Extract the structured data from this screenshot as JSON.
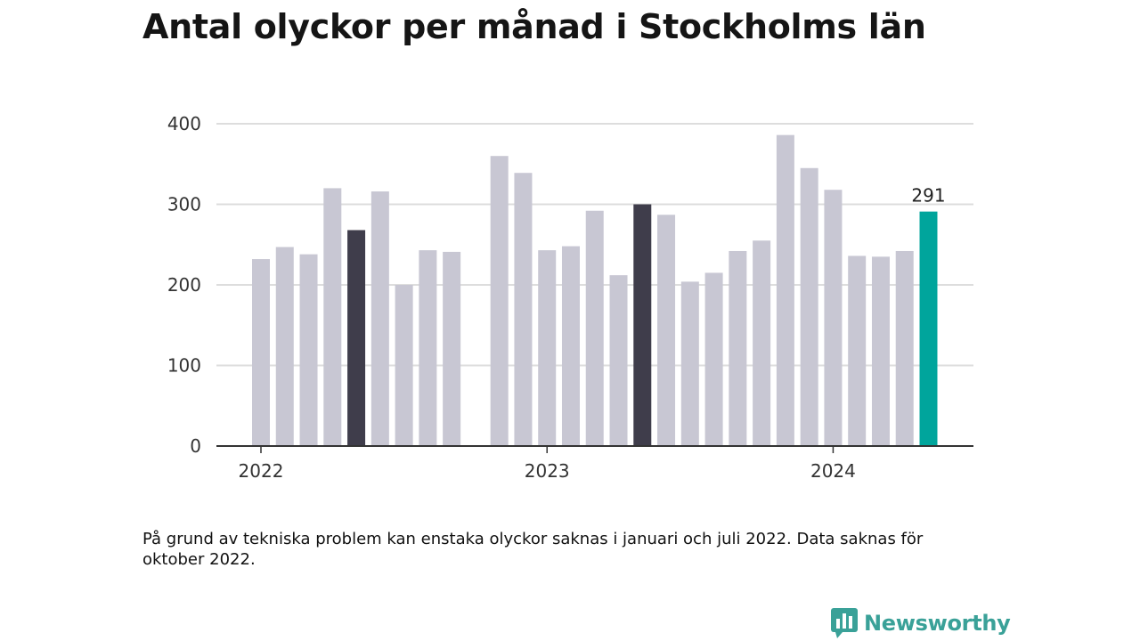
{
  "header": {
    "title": "Antal olyckor per månad i Stockholms län"
  },
  "footer": {
    "note": "På grund av tekniska problem kan enstaka olyckor saknas i januari och juli 2022. Data saknas för oktober 2022.",
    "brand": "Newsworthy",
    "logo_icon": "newsworthy-logo-icon"
  },
  "colors": {
    "default_bar": "#c8c7d3",
    "highlight_bar": "#3f3d4b",
    "latest_bar": "#00a59c",
    "grid": "#dddddd",
    "axis": "#333333",
    "brand": "#3aa198"
  },
  "chart_data": {
    "type": "bar",
    "title": "Antal olyckor per månad i Stockholms län",
    "xlabel": "",
    "ylabel": "",
    "ylim": [
      0,
      400
    ],
    "yticks": [
      0,
      100,
      200,
      300,
      400
    ],
    "grid": true,
    "x_year_ticks": [
      {
        "label": "2022",
        "month": "2022-01"
      },
      {
        "label": "2023",
        "month": "2023-01"
      },
      {
        "label": "2024",
        "month": "2024-01"
      }
    ],
    "highlight_months": [
      "2022-05",
      "2023-05"
    ],
    "latest_month": "2024-05",
    "annotations": [
      {
        "month": "2024-05",
        "text": "291"
      }
    ],
    "categories": [
      "2022-01",
      "2022-02",
      "2022-03",
      "2022-04",
      "2022-05",
      "2022-06",
      "2022-07",
      "2022-08",
      "2022-09",
      "2022-10",
      "2022-11",
      "2022-12",
      "2023-01",
      "2023-02",
      "2023-03",
      "2023-04",
      "2023-05",
      "2023-06",
      "2023-07",
      "2023-08",
      "2023-09",
      "2023-10",
      "2023-11",
      "2023-12",
      "2024-01",
      "2024-02",
      "2024-03",
      "2024-04",
      "2024-05"
    ],
    "values": [
      232,
      247,
      238,
      320,
      268,
      316,
      200,
      243,
      241,
      null,
      360,
      339,
      243,
      248,
      292,
      212,
      300,
      287,
      204,
      215,
      242,
      255,
      386,
      345,
      318,
      236,
      235,
      242,
      291
    ]
  }
}
